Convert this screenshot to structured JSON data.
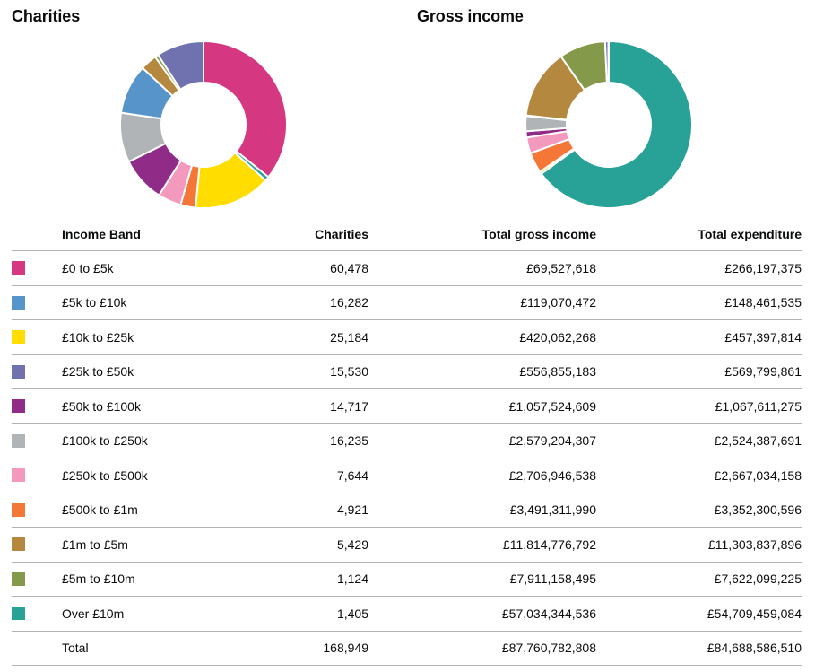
{
  "titles": {
    "charities": "Charities",
    "income": "Gross income"
  },
  "table": {
    "headers": {
      "band": "Income Band",
      "charities": "Charities",
      "gross": "Total gross income",
      "expenditure": "Total expenditure"
    },
    "rows": [
      {
        "band": "£0 to £5k",
        "charities": "60,478",
        "gross": "£69,527,618",
        "expenditure": "£266,197,375",
        "color": "#d53880"
      },
      {
        "band": "£5k to £10k",
        "charities": "16,282",
        "gross": "£119,070,472",
        "expenditure": "£148,461,535",
        "color": "#5694ca"
      },
      {
        "band": "£10k to £25k",
        "charities": "25,184",
        "gross": "£420,062,268",
        "expenditure": "£457,397,814",
        "color": "#ffdd00"
      },
      {
        "band": "£25k to £50k",
        "charities": "15,530",
        "gross": "£556,855,183",
        "expenditure": "£569,799,861",
        "color": "#6f72af"
      },
      {
        "band": "£50k to £100k",
        "charities": "14,717",
        "gross": "£1,057,524,609",
        "expenditure": "£1,067,611,275",
        "color": "#912b88"
      },
      {
        "band": "£100k to £250k",
        "charities": "16,235",
        "gross": "£2,579,204,307",
        "expenditure": "£2,524,387,691",
        "color": "#b1b4b6"
      },
      {
        "band": "£250k to £500k",
        "charities": "7,644",
        "gross": "£2,706,946,538",
        "expenditure": "£2,667,034,158",
        "color": "#f499be"
      },
      {
        "band": "£500k to £1m",
        "charities": "4,921",
        "gross": "£3,491,311,990",
        "expenditure": "£3,352,300,596",
        "color": "#f47738"
      },
      {
        "band": "£1m to £5m",
        "charities": "5,429",
        "gross": "£11,814,776,792",
        "expenditure": "£11,303,837,896",
        "color": "#b58840"
      },
      {
        "band": "£5m to £10m",
        "charities": "1,124",
        "gross": "£7,911,158,495",
        "expenditure": "£7,622,099,225",
        "color": "#85994b"
      },
      {
        "band": "Over £10m",
        "charities": "1,405",
        "gross": "£57,034,344,536",
        "expenditure": "£54,709,459,084",
        "color": "#28a197"
      }
    ],
    "total": {
      "band": "Total",
      "charities": "168,949",
      "gross": "£87,760,782,808",
      "expenditure": "£84,688,586,510"
    }
  },
  "chart_data": [
    {
      "type": "pie",
      "variant": "donut",
      "title": "Charities",
      "categories": [
        "£0 to £5k",
        "£5k to £10k",
        "£10k to £25k",
        "£25k to £50k",
        "£50k to £100k",
        "£100k to £250k",
        "£250k to £500k",
        "£500k to £1m",
        "£1m to £5m",
        "£5m to £10m",
        "Over £10m"
      ],
      "draw_order": [
        0,
        10,
        2,
        7,
        6,
        4,
        5,
        1,
        8,
        9,
        3
      ],
      "values": [
        60478,
        16282,
        25184,
        15530,
        14717,
        16235,
        7644,
        4921,
        5429,
        1124,
        1405
      ],
      "colors": [
        "#d53880",
        "#5694ca",
        "#ffdd00",
        "#6f72af",
        "#912b88",
        "#b1b4b6",
        "#f499be",
        "#f47738",
        "#b58840",
        "#85994b",
        "#28a197"
      ]
    },
    {
      "type": "pie",
      "variant": "donut",
      "title": "Gross income",
      "categories": [
        "£0 to £5k",
        "£5k to £10k",
        "£10k to £25k",
        "£25k to £50k",
        "£50k to £100k",
        "£100k to £250k",
        "£250k to £500k",
        "£500k to £1m",
        "£1m to £5m",
        "£5m to £10m",
        "Over £10m"
      ],
      "draw_order": [
        10,
        2,
        7,
        6,
        4,
        5,
        1,
        8,
        9,
        3,
        0
      ],
      "values": [
        69527618,
        119070472,
        420062268,
        556855183,
        1057524609,
        2579204307,
        2706946538,
        3491311990,
        11814776792,
        7911158495,
        57034344536
      ],
      "colors": [
        "#d53880",
        "#5694ca",
        "#ffdd00",
        "#6f72af",
        "#912b88",
        "#b1b4b6",
        "#f499be",
        "#f47738",
        "#b58840",
        "#85994b",
        "#28a197"
      ]
    }
  ]
}
